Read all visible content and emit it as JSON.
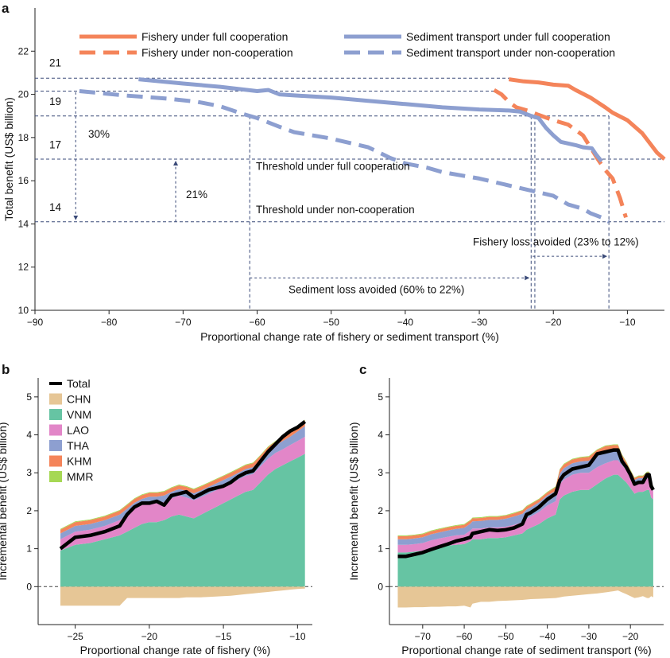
{
  "figure": {
    "panel_a": "a",
    "panel_b": "b",
    "panel_c": "c"
  },
  "chart_data": [
    {
      "id": "a",
      "type": "line",
      "xlabel": "Proportional change rate of fishery or sediment transport (%)",
      "ylabel": "Total benefit (US$ billion)",
      "xlim": [
        -90,
        -5
      ],
      "ylim": [
        10,
        24
      ],
      "xticks": [
        -90,
        -80,
        -70,
        -60,
        -50,
        -40,
        -30,
        -20,
        -10
      ],
      "yticks": [
        10,
        12,
        14,
        16,
        18,
        20,
        22
      ],
      "colors": {
        "fishery": "#f4845a",
        "sediment": "#8d9fd0",
        "guide": "#3a4a78"
      },
      "legend_position": "top",
      "series": [
        {
          "name": "Fishery under full cooperation",
          "color": "#f4845a",
          "dash": false,
          "x": [
            -26,
            -24,
            -22,
            -20,
            -18,
            -17,
            -15,
            -13,
            -12,
            -10,
            -8,
            -6,
            -5
          ],
          "y": [
            20.7,
            20.6,
            20.55,
            20.45,
            20.4,
            20.2,
            19.85,
            19.4,
            19.15,
            18.8,
            18.2,
            17.3,
            17.0
          ]
        },
        {
          "name": "Fishery under non-cooperation",
          "color": "#f4845a",
          "dash": true,
          "x": [
            -28,
            -27,
            -26,
            -25,
            -23.5,
            -22,
            -20,
            -18,
            -16,
            -14,
            -13,
            -12,
            -11,
            -10.2
          ],
          "y": [
            20.2,
            20.0,
            19.65,
            19.4,
            19.25,
            19.05,
            18.8,
            18.6,
            18.1,
            17.0,
            16.5,
            16.1,
            15.2,
            14.3
          ]
        },
        {
          "name": "Sediment transport under full cooperation",
          "color": "#8d9fd0",
          "dash": false,
          "x": [
            -76,
            -70,
            -65,
            -60,
            -58.5,
            -57,
            -55,
            -50,
            -45,
            -40,
            -35,
            -30,
            -26,
            -24.5,
            -23,
            -22,
            -21,
            -20,
            -19,
            -17,
            -16,
            -14.8,
            -14.2,
            -13.5
          ],
          "y": [
            20.7,
            20.5,
            20.35,
            20.15,
            20.2,
            20.0,
            19.95,
            19.85,
            19.7,
            19.55,
            19.4,
            19.3,
            19.25,
            19.2,
            19.0,
            18.9,
            18.45,
            18.1,
            17.8,
            17.65,
            17.55,
            17.5,
            17.2,
            16.9
          ]
        },
        {
          "name": "Sediment transport under non-cooperation",
          "color": "#8d9fd0",
          "dash": true,
          "x": [
            -84,
            -78,
            -72,
            -68,
            -65,
            -62,
            -60,
            -57,
            -55,
            -50,
            -45,
            -42,
            -40,
            -37,
            -35,
            -30,
            -25,
            -20,
            -18,
            -16,
            -15,
            -13.5,
            -12.5
          ],
          "y": [
            20.15,
            19.95,
            19.8,
            19.65,
            19.45,
            19.1,
            18.9,
            18.5,
            18.25,
            17.95,
            17.55,
            17.05,
            16.8,
            16.6,
            16.4,
            16.1,
            15.7,
            15.3,
            14.9,
            14.7,
            14.5,
            14.3,
            14.1
          ]
        }
      ],
      "annotations": {
        "level_21": "21",
        "level_19": "19",
        "level_17": "17",
        "level_14": "14",
        "pct_30": "30%",
        "pct_21": "21%",
        "threshold_full": "Threshold under full cooperation",
        "threshold_non": "Threshold under non-cooperation",
        "fishery_loss": "Fishery loss avoided (23% to 12%)",
        "sediment_loss": "Sediment loss avoided (60% to 22%)"
      }
    },
    {
      "id": "b",
      "type": "area",
      "xlabel": "Proportional change rate of fishery (%)",
      "ylabel": "Incremental benefit (US$ billion)",
      "xlim": [
        -27.5,
        -9
      ],
      "ylim": [
        -1,
        5.5
      ],
      "xticks": [
        -25,
        -20,
        -15,
        -10
      ],
      "yticks": [
        0,
        1,
        2,
        3,
        4,
        5
      ],
      "legend_position": "top-left",
      "x": [
        -26,
        -25,
        -24,
        -23,
        -22,
        -21.5,
        -21,
        -20.5,
        -20,
        -19.5,
        -19,
        -18.5,
        -18,
        -17.5,
        -17,
        -16.5,
        -16,
        -15.5,
        -15,
        -14.5,
        -14,
        -13.5,
        -13,
        -12.5,
        -12,
        -11.5,
        -11,
        -10.5,
        -10,
        -9.5
      ],
      "series": [
        {
          "name": "Total",
          "color": "#000000",
          "values": [
            1.0,
            1.3,
            1.35,
            1.45,
            1.6,
            1.9,
            2.1,
            2.2,
            2.2,
            2.25,
            2.15,
            2.4,
            2.45,
            2.5,
            2.35,
            2.45,
            2.55,
            2.6,
            2.65,
            2.75,
            2.9,
            3.0,
            3.05,
            3.3,
            3.55,
            3.75,
            3.95,
            4.1,
            4.2,
            4.35
          ]
        },
        {
          "name": "CHN",
          "color": "#e6c696",
          "values": [
            -0.5,
            -0.5,
            -0.5,
            -0.5,
            -0.5,
            -0.3,
            -0.3,
            -0.3,
            -0.3,
            -0.3,
            -0.3,
            -0.3,
            -0.3,
            -0.28,
            -0.28,
            -0.28,
            -0.27,
            -0.26,
            -0.25,
            -0.24,
            -0.22,
            -0.2,
            -0.18,
            -0.16,
            -0.14,
            -0.12,
            -0.1,
            -0.08,
            -0.06,
            -0.05
          ]
        },
        {
          "name": "VNM",
          "color": "#66c4a3",
          "values": [
            0.95,
            1.1,
            1.15,
            1.25,
            1.35,
            1.45,
            1.55,
            1.65,
            1.7,
            1.7,
            1.75,
            1.85,
            1.9,
            1.85,
            1.8,
            1.9,
            2.0,
            2.1,
            2.2,
            2.3,
            2.4,
            2.5,
            2.55,
            2.75,
            2.95,
            3.1,
            3.2,
            3.3,
            3.4,
            3.5
          ]
        },
        {
          "name": "LAO",
          "color": "#e286c8",
          "values": [
            0.3,
            0.35,
            0.35,
            0.35,
            0.4,
            0.45,
            0.5,
            0.5,
            0.5,
            0.5,
            0.48,
            0.48,
            0.5,
            0.5,
            0.48,
            0.46,
            0.45,
            0.44,
            0.43,
            0.42,
            0.42,
            0.42,
            0.42,
            0.42,
            0.42,
            0.42,
            0.42,
            0.43,
            0.44,
            0.45
          ]
        },
        {
          "name": "THA",
          "color": "#8d9fd0",
          "values": [
            0.15,
            0.15,
            0.15,
            0.15,
            0.15,
            0.15,
            0.16,
            0.16,
            0.17,
            0.17,
            0.17,
            0.17,
            0.17,
            0.18,
            0.18,
            0.18,
            0.18,
            0.18,
            0.18,
            0.18,
            0.18,
            0.18,
            0.18,
            0.18,
            0.2,
            0.2,
            0.22,
            0.22,
            0.25,
            0.28
          ]
        },
        {
          "name": "KHM",
          "color": "#f4845a",
          "values": [
            0.1,
            0.1,
            0.1,
            0.1,
            0.1,
            0.1,
            0.1,
            0.1,
            0.1,
            0.1,
            0.1,
            0.1,
            0.1,
            0.1,
            0.1,
            0.1,
            0.1,
            0.1,
            0.1,
            0.1,
            0.1,
            0.1,
            0.1,
            0.1,
            0.1,
            0.1,
            0.1,
            0.1,
            0.12,
            0.15
          ]
        },
        {
          "name": "MMR",
          "color": "#a6d854",
          "values": [
            0.02,
            0.02,
            0.02,
            0.02,
            0.02,
            0.02,
            0.02,
            0.02,
            0.02,
            0.02,
            0.02,
            0.02,
            0.02,
            0.02,
            0.02,
            0.02,
            0.02,
            0.02,
            0.02,
            0.02,
            0.02,
            0.02,
            0.02,
            0.02,
            0.02,
            0.02,
            0.02,
            0.02,
            0.02,
            0.02
          ]
        }
      ]
    },
    {
      "id": "c",
      "type": "area",
      "xlabel": "Proportional change rate of sediment transport (%)",
      "ylabel": "Incremental benefit (US$ billion)",
      "xlim": [
        -78,
        -12
      ],
      "ylim": [
        -1,
        5.5
      ],
      "xticks": [
        -70,
        -60,
        -50,
        -40,
        -30,
        -20
      ],
      "yticks": [
        0,
        1,
        2,
        3,
        4,
        5
      ],
      "x": [
        -76,
        -74,
        -72,
        -70,
        -68,
        -66,
        -64,
        -62,
        -60,
        -58.5,
        -58,
        -56,
        -54,
        -52,
        -50,
        -48,
        -46,
        -45,
        -44,
        -42,
        -40,
        -38,
        -37,
        -36,
        -34,
        -32,
        -30,
        -28,
        -26,
        -24,
        -23,
        -22,
        -21,
        -20,
        -19,
        -18,
        -17,
        -16,
        -15.5,
        -15,
        -14.5
      ],
      "series": [
        {
          "name": "Total",
          "color": "#000000",
          "values": [
            0.8,
            0.8,
            0.85,
            0.9,
            0.98,
            1.05,
            1.12,
            1.2,
            1.25,
            1.3,
            1.4,
            1.45,
            1.5,
            1.48,
            1.5,
            1.55,
            1.65,
            1.9,
            1.95,
            2.1,
            2.3,
            2.45,
            2.8,
            2.95,
            3.1,
            3.15,
            3.2,
            3.5,
            3.55,
            3.6,
            3.6,
            3.3,
            3.15,
            2.95,
            2.7,
            2.75,
            2.75,
            2.95,
            2.95,
            2.65,
            2.55
          ]
        },
        {
          "name": "CHN",
          "color": "#e6c696",
          "values": [
            -0.55,
            -0.55,
            -0.54,
            -0.54,
            -0.53,
            -0.53,
            -0.52,
            -0.52,
            -0.5,
            -0.55,
            -0.45,
            -0.4,
            -0.4,
            -0.38,
            -0.37,
            -0.36,
            -0.35,
            -0.34,
            -0.33,
            -0.32,
            -0.31,
            -0.3,
            -0.28,
            -0.26,
            -0.24,
            -0.22,
            -0.2,
            -0.18,
            -0.15,
            -0.12,
            -0.1,
            -0.15,
            -0.2,
            -0.25,
            -0.3,
            -0.28,
            -0.25,
            -0.3,
            -0.3,
            -0.25,
            -0.28
          ]
        },
        {
          "name": "VNM",
          "color": "#66c4a3",
          "values": [
            0.9,
            0.9,
            0.92,
            0.95,
            1.0,
            1.05,
            1.08,
            1.1,
            1.12,
            1.2,
            1.25,
            1.25,
            1.28,
            1.28,
            1.3,
            1.35,
            1.4,
            1.5,
            1.55,
            1.65,
            1.8,
            1.9,
            2.3,
            2.4,
            2.5,
            2.55,
            2.55,
            2.7,
            2.85,
            2.95,
            2.95,
            2.85,
            2.75,
            2.6,
            2.45,
            2.5,
            2.5,
            2.55,
            2.55,
            2.35,
            2.3
          ]
        },
        {
          "name": "LAO",
          "color": "#e286c8",
          "values": [
            0.2,
            0.2,
            0.2,
            0.2,
            0.22,
            0.22,
            0.23,
            0.25,
            0.25,
            0.28,
            0.28,
            0.28,
            0.28,
            0.28,
            0.28,
            0.28,
            0.3,
            0.3,
            0.3,
            0.32,
            0.34,
            0.35,
            0.4,
            0.42,
            0.45,
            0.45,
            0.45,
            0.45,
            0.4,
            0.38,
            0.38,
            0.35,
            0.32,
            0.3,
            0.28,
            0.28,
            0.28,
            0.3,
            0.3,
            0.25,
            0.22
          ]
        },
        {
          "name": "THA",
          "color": "#8d9fd0",
          "values": [
            0.15,
            0.15,
            0.15,
            0.15,
            0.16,
            0.16,
            0.17,
            0.17,
            0.18,
            0.18,
            0.19,
            0.2,
            0.2,
            0.2,
            0.21,
            0.22,
            0.22,
            0.23,
            0.24,
            0.25,
            0.26,
            0.27,
            0.28,
            0.3,
            0.3,
            0.3,
            0.32,
            0.35,
            0.35,
            0.3,
            0.3,
            0.2,
            0.15,
            0.1,
            0.08,
            0.08,
            0.08,
            0.1,
            0.1,
            0.08,
            0.06
          ]
        },
        {
          "name": "KHM",
          "color": "#f4845a",
          "values": [
            0.08,
            0.08,
            0.08,
            0.08,
            0.08,
            0.08,
            0.08,
            0.08,
            0.08,
            0.08,
            0.08,
            0.08,
            0.08,
            0.08,
            0.08,
            0.08,
            0.08,
            0.08,
            0.08,
            0.08,
            0.08,
            0.1,
            0.1,
            0.1,
            0.1,
            0.1,
            0.1,
            0.1,
            0.1,
            0.1,
            0.1,
            0.06,
            0.06,
            0.06,
            0.05,
            0.05,
            0.05,
            0.06,
            0.06,
            0.05,
            0.05
          ]
        },
        {
          "name": "MMR",
          "color": "#a6d854",
          "values": [
            0.02,
            0.02,
            0.02,
            0.02,
            0.02,
            0.02,
            0.02,
            0.02,
            0.02,
            0.02,
            0.02,
            0.02,
            0.02,
            0.02,
            0.02,
            0.02,
            0.02,
            0.02,
            0.02,
            0.02,
            0.02,
            0.02,
            0.02,
            0.02,
            0.02,
            0.02,
            0.02,
            0.02,
            0.02,
            0.02,
            0.02,
            0.02,
            0.02,
            0.02,
            0.02,
            0.02,
            0.02,
            0.02,
            0.02,
            0.02,
            0.02
          ]
        }
      ]
    }
  ]
}
